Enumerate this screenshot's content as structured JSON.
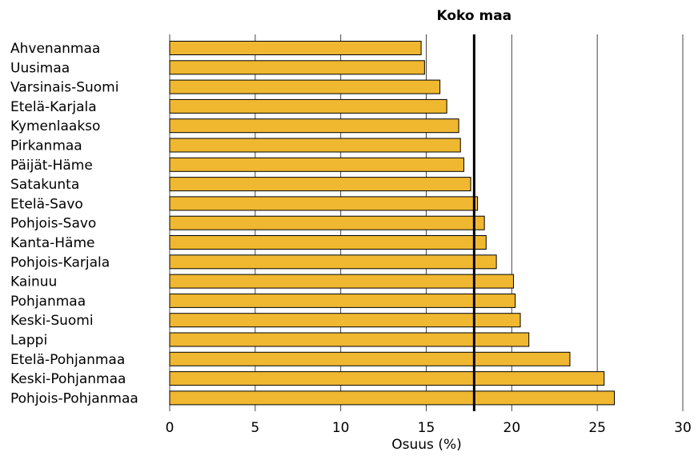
{
  "chart_data": {
    "type": "bar",
    "orientation": "horizontal",
    "title": "",
    "xlabel": "Osuus (%)",
    "ylabel": "",
    "xlim": [
      0,
      30
    ],
    "xticks": [
      0,
      5,
      10,
      15,
      20,
      25,
      30
    ],
    "grid": true,
    "categories": [
      "Ahvenanmaa",
      "Uusimaa",
      "Varsinais-Suomi",
      "Etelä-Karjala",
      "Kymenlaakso",
      "Pirkanmaa",
      "Päijät-Häme",
      "Satakunta",
      "Etelä-Savo",
      "Pohjois-Savo",
      "Kanta-Häme",
      "Pohjois-Karjala",
      "Kainuu",
      "Pohjanmaa",
      "Keski-Suomi",
      "Lappi",
      "Etelä-Pohjanmaa",
      "Keski-Pohjanmaa",
      "Pohjois-Pohjanmaa"
    ],
    "values": [
      14.7,
      14.9,
      15.8,
      16.2,
      16.9,
      17.0,
      17.2,
      17.6,
      18.0,
      18.4,
      18.5,
      19.1,
      20.1,
      20.2,
      20.5,
      21.0,
      23.4,
      25.4,
      26.0
    ],
    "bar_color": "#f0b830",
    "reference_line": {
      "label": "Koko maa",
      "value": 17.8
    }
  }
}
